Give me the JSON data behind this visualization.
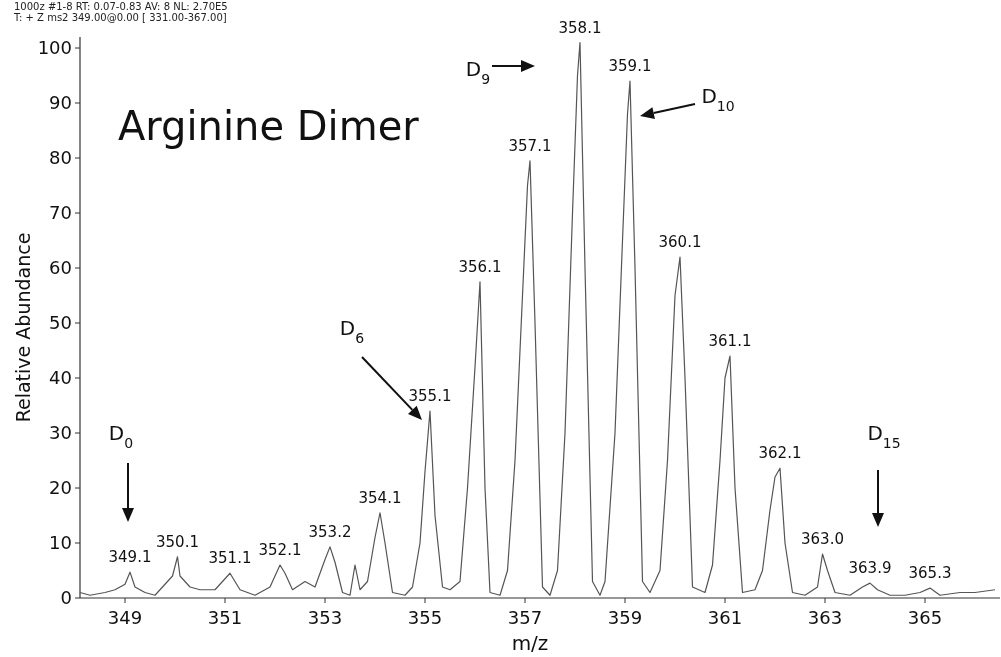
{
  "chart_data": {
    "type": "line",
    "title": "Arginine Dimer",
    "xlabel": "m/z",
    "ylabel": "Relative Abundance",
    "x": [
      348.1,
      348.3,
      348.6,
      348.8,
      349.0,
      349.1,
      349.2,
      349.4,
      349.6,
      349.8,
      349.95,
      350.05,
      350.1,
      350.3,
      350.5,
      350.8,
      351.0,
      351.1,
      351.3,
      351.6,
      351.9,
      352.1,
      352.2,
      352.35,
      352.6,
      352.8,
      353.0,
      353.1,
      353.2,
      353.35,
      353.5,
      353.6,
      353.7,
      353.85,
      354.0,
      354.1,
      354.2,
      354.35,
      354.6,
      354.75,
      354.9,
      355.0,
      355.1,
      355.2,
      355.35,
      355.5,
      355.7,
      355.85,
      356.0,
      356.1,
      356.2,
      356.3,
      356.5,
      356.65,
      356.8,
      356.95,
      357.05,
      357.1,
      357.2,
      357.35,
      357.5,
      357.65,
      357.8,
      357.95,
      358.05,
      358.1,
      358.2,
      358.35,
      358.5,
      358.6,
      358.8,
      358.95,
      359.05,
      359.1,
      359.2,
      359.35,
      359.5,
      359.7,
      359.85,
      360.0,
      360.1,
      360.2,
      360.35,
      360.6,
      360.75,
      360.9,
      361.0,
      361.1,
      361.2,
      361.35,
      361.6,
      361.75,
      361.9,
      362.0,
      362.1,
      362.2,
      362.35,
      362.6,
      362.85,
      362.95,
      363.05,
      363.2,
      363.5,
      363.75,
      363.9,
      364.05,
      364.3,
      364.6,
      364.9,
      365.1,
      365.3,
      365.7,
      366.0,
      366.4
    ],
    "series": [
      {
        "color": "#555555",
        "values": [
          1,
          0.5,
          1,
          1.5,
          2.5,
          4.7,
          2,
          1,
          0.5,
          2.5,
          4,
          7.5,
          4,
          2,
          1.5,
          1.5,
          3.5,
          4.5,
          1.5,
          0.5,
          2,
          6,
          4.5,
          1.5,
          3,
          2,
          7,
          9.3,
          6.5,
          1,
          0.5,
          6,
          1.5,
          3,
          11,
          15.5,
          10,
          1,
          0.5,
          2,
          10,
          23,
          34,
          15,
          2,
          1.5,
          3,
          20,
          42,
          57.5,
          20,
          1,
          0.5,
          5,
          25,
          55,
          75,
          79.5,
          50,
          2,
          0.5,
          5,
          30,
          70,
          95,
          101,
          60,
          3,
          0.5,
          3,
          30,
          65,
          88,
          94,
          60,
          3,
          1,
          5,
          25,
          55,
          62,
          40,
          2,
          1,
          6,
          25,
          40,
          44,
          20,
          1,
          1.5,
          5,
          16,
          22,
          23.6,
          10,
          1,
          0.5,
          2,
          8,
          5,
          1,
          0.5,
          2,
          2.7,
          1.5,
          0.5,
          0.5,
          1,
          1.8,
          0.5,
          1,
          1,
          1.5
        ]
      }
    ],
    "xlim": [
      348.1,
      366.5
    ],
    "ylim": [
      0,
      102
    ],
    "xticks": [
      349,
      351,
      353,
      355,
      357,
      359,
      361,
      363,
      365
    ],
    "yticks": [
      0,
      10,
      20,
      30,
      40,
      50,
      60,
      70,
      80,
      90,
      100
    ],
    "grid": false,
    "marker": "none",
    "line_style": "solid",
    "annotations": [
      "1000z #1-8   RT: 0.07-0.83   AV: 8   NL: 2.70E5",
      "T: + Z ms2 349.00@0.00 [ 331.00-367.00]",
      {
        "text": "349.1",
        "x": 349.1,
        "y": 4.7
      },
      {
        "text": "350.1",
        "x": 350.05,
        "y": 7.5
      },
      {
        "text": "351.1",
        "x": 351.1,
        "y": 4.5
      },
      {
        "text": "352.1",
        "x": 352.1,
        "y": 6
      },
      {
        "text": "353.2",
        "x": 353.1,
        "y": 9.3
      },
      {
        "text": "354.1",
        "x": 354.1,
        "y": 15.5
      },
      {
        "text": "355.1",
        "x": 355.1,
        "y": 34
      },
      {
        "text": "356.1",
        "x": 356.1,
        "y": 57.5
      },
      {
        "text": "357.1",
        "x": 357.1,
        "y": 79.5
      },
      {
        "text": "358.1",
        "x": 358.1,
        "y": 101
      },
      {
        "text": "359.1",
        "x": 359.1,
        "y": 94
      },
      {
        "text": "360.1",
        "x": 360.1,
        "y": 62
      },
      {
        "text": "361.1",
        "x": 361.1,
        "y": 44
      },
      {
        "text": "362.1",
        "x": 362.1,
        "y": 23.6
      },
      {
        "text": "363.0",
        "x": 362.95,
        "y": 8
      },
      {
        "text": "363.9",
        "x": 363.9,
        "y": 2.7
      },
      {
        "text": "365.3",
        "x": 365.1,
        "y": 1.8
      },
      "D$_{0}$",
      "D$_{6}$",
      "D$_{9}$",
      "D$_{10}$",
      "D$_{15}$"
    ]
  }
}
